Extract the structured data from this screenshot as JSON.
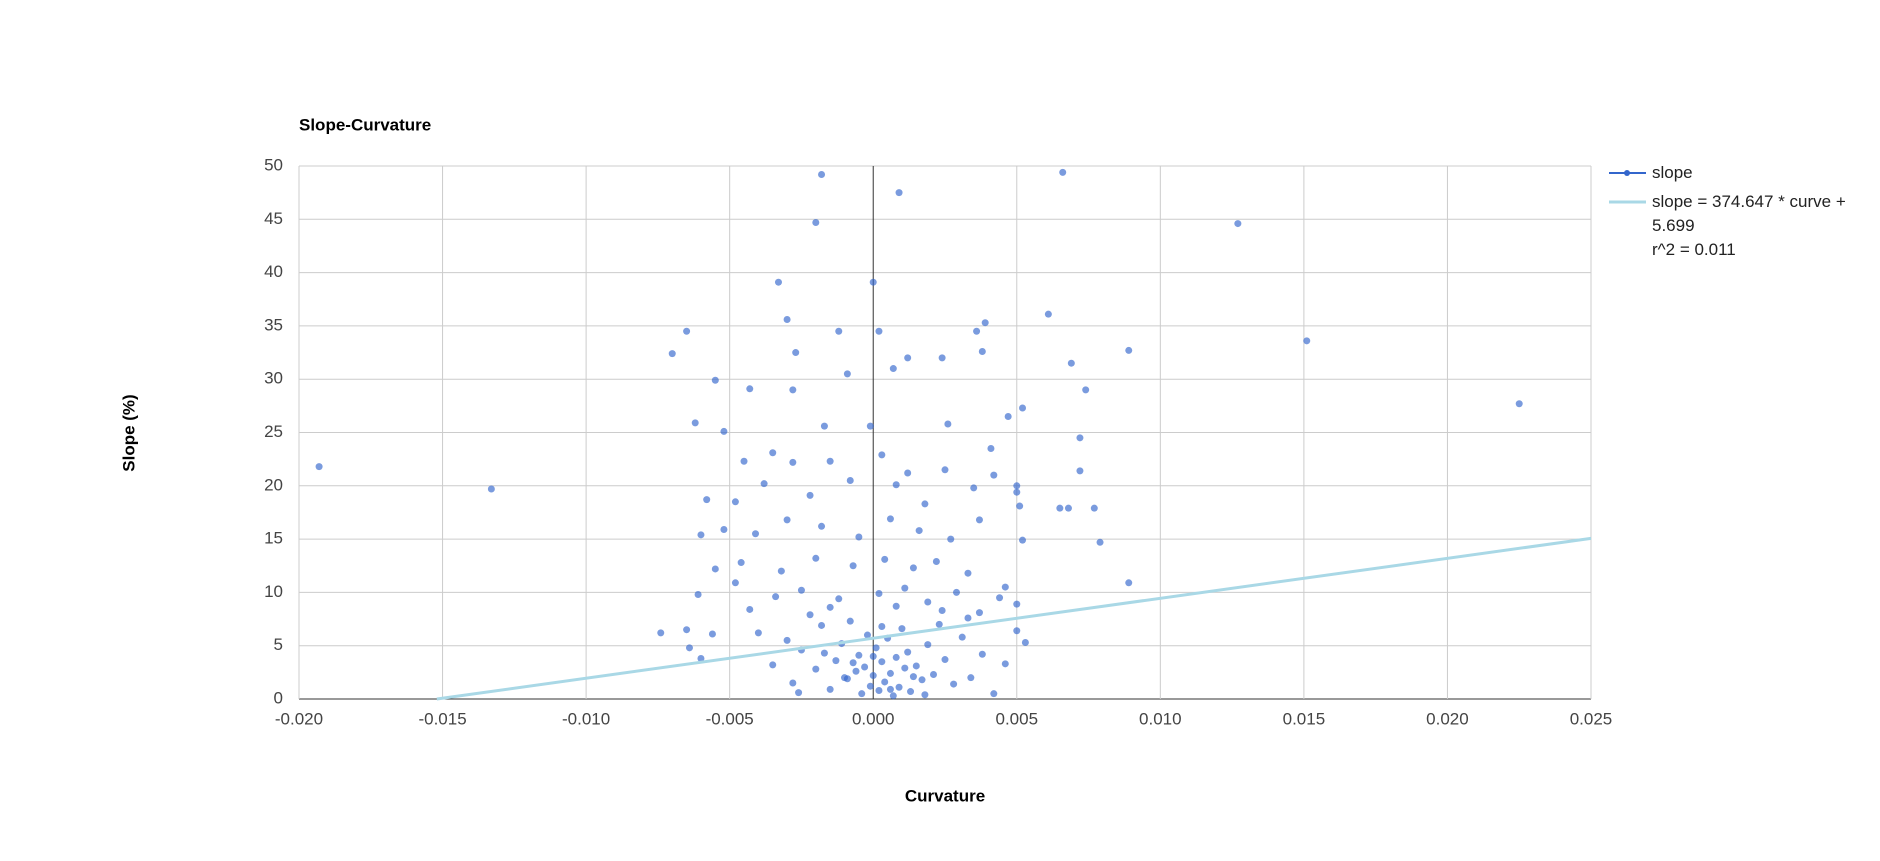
{
  "chart_data": {
    "type": "scatter",
    "title": "Slope-Curvature",
    "x_label": "Curvature",
    "y_label": "Slope (%)",
    "xlim": [
      -0.02,
      0.025
    ],
    "ylim": [
      0,
      50
    ],
    "xticks": [
      {
        "value": -0.02,
        "label": "-0.020"
      },
      {
        "value": -0.015,
        "label": "-0.015"
      },
      {
        "value": -0.01,
        "label": "-0.010"
      },
      {
        "value": -0.005,
        "label": "-0.005"
      },
      {
        "value": 0,
        "label": "0.000"
      },
      {
        "value": 0.005,
        "label": "0.005"
      },
      {
        "value": 0.01,
        "label": "0.010"
      },
      {
        "value": 0.015,
        "label": "0.015"
      },
      {
        "value": 0.02,
        "label": "0.020"
      },
      {
        "value": 0.025,
        "label": "0.025"
      }
    ],
    "yticks": [
      0,
      5,
      10,
      15,
      20,
      25,
      30,
      35,
      40,
      45,
      50
    ],
    "grid": true,
    "legend": "right",
    "series": [
      {
        "name": "slope",
        "color": "#3366cc",
        "x": [
          -0.0193,
          -0.0133,
          -0.0018,
          0.0009,
          -0.002,
          0.0066,
          0.0127,
          0.0151,
          0.0225,
          0,
          -0.0033,
          -0.003,
          -0.0065,
          -0.007,
          -0.0027,
          -0.0012,
          0.0002,
          0.0061,
          0.0039,
          0.0036,
          0.0089,
          0.0069,
          0.0074,
          0.0038,
          0.0024,
          0.0012,
          0.0007,
          -0.0055,
          -0.0043,
          -0.0028,
          -0.0009,
          -0.0062,
          -0.0052,
          -0.0017,
          -0.0001,
          0.0052,
          0.0026,
          0.0047,
          0.0072,
          0.0072,
          0.0065,
          0.0068,
          0.0077,
          0.0079,
          0.0089,
          0.0051,
          0.005,
          0.005,
          -0.006,
          -0.0074,
          -0.0045,
          -0.0035,
          -0.0028,
          -0.0015,
          0.0003,
          0.0012,
          0.0025,
          0.0042,
          0.0041,
          -0.0048,
          -0.0058,
          -0.0038,
          -0.0022,
          -0.0008,
          0.0008,
          0.0018,
          0.0035,
          -0.0052,
          -0.006,
          -0.0041,
          -0.003,
          -0.0018,
          -0.0005,
          0.0006,
          0.0016,
          0.0027,
          0.0037,
          0.0052,
          -0.0055,
          -0.0046,
          -0.0032,
          -0.002,
          -0.0007,
          0.0004,
          0.0014,
          0.0022,
          0.0033,
          0.0046,
          -0.0061,
          -0.0048,
          -0.0034,
          -0.0025,
          -0.0012,
          0.0002,
          0.0011,
          0.0019,
          0.0029,
          0.0044,
          0.005,
          -0.0043,
          -0.0015,
          0.0008,
          0.0024,
          0.0037,
          -0.0065,
          -0.0056,
          -0.0064,
          -0.004,
          -0.003,
          -0.0035,
          -0.0028,
          -0.0025,
          -0.002,
          -0.0018,
          -0.0015,
          -0.0013,
          -0.0011,
          -0.0009,
          -0.0008,
          -0.0006,
          -0.0005,
          -0.0004,
          -0.0003,
          -0.0002,
          -0.0001,
          0,
          0.0001,
          0.0002,
          0.0003,
          0.0004,
          0.0005,
          0.0006,
          0.0007,
          0.0008,
          0.0009,
          0.001,
          0.0011,
          0.0012,
          0.0013,
          0.0015,
          0.0017,
          0.0019,
          0.0021,
          0.0023,
          0.0025,
          0.0028,
          0.0031,
          0.0034,
          0.0038,
          0.0042,
          0.0046,
          0.005,
          0.0053,
          0.0033,
          -0.0022,
          -0.001,
          0,
          0.0006,
          -0.0007,
          0.0014,
          0.0003,
          -0.0017,
          0.0018,
          -0.0026
        ],
        "values": [
          21.8,
          19.7,
          49.2,
          47.5,
          44.7,
          49.4,
          44.6,
          33.6,
          27.7,
          39.1,
          39.1,
          35.6,
          34.5,
          32.4,
          32.5,
          34.5,
          34.5,
          36.1,
          35.3,
          34.5,
          32.7,
          31.5,
          29,
          32.6,
          32,
          32,
          31,
          29.9,
          29.1,
          29,
          30.5,
          25.9,
          25.1,
          25.6,
          25.6,
          27.3,
          25.8,
          26.5,
          24.5,
          21.4,
          17.9,
          17.9,
          17.9,
          14.7,
          10.9,
          18.1,
          20,
          19.4,
          3.8,
          6.2,
          22.3,
          23.1,
          22.2,
          22.3,
          22.9,
          21.2,
          21.5,
          21,
          23.5,
          18.5,
          18.7,
          20.2,
          19.1,
          20.5,
          20.1,
          18.3,
          19.8,
          15.9,
          15.4,
          15.5,
          16.8,
          16.2,
          15.2,
          16.9,
          15.8,
          15,
          16.8,
          14.9,
          12.2,
          12.8,
          12,
          13.2,
          12.5,
          13.1,
          12.3,
          12.9,
          11.8,
          10.5,
          9.8,
          10.9,
          9.6,
          10.2,
          9.4,
          9.9,
          10.4,
          9.1,
          10,
          9.5,
          8.9,
          8.4,
          8.6,
          8.7,
          8.3,
          8.1,
          6.5,
          6.1,
          4.8,
          6.2,
          5.5,
          3.2,
          1.5,
          4.6,
          2.8,
          6.9,
          0.9,
          3.6,
          5.2,
          1.9,
          7.3,
          2.6,
          4.1,
          0.5,
          3,
          6,
          1.2,
          2.2,
          4.8,
          0.8,
          3.5,
          1.6,
          5.7,
          2.4,
          0.3,
          3.9,
          1.1,
          6.6,
          2.9,
          4.4,
          0.7,
          3.1,
          1.8,
          5.1,
          2.3,
          7,
          3.7,
          1.4,
          5.8,
          2,
          4.2,
          0.5,
          3.3,
          6.4,
          5.3,
          7.6,
          7.9,
          2,
          4,
          0.9,
          3.4,
          2.1,
          6.8,
          4.3,
          0.4,
          0.6
        ]
      },
      {
        "name": "slope = 374.647 * curve + 5.699",
        "subtitle": "r^2 = 0.011",
        "color": "#a9d8e6",
        "trendline": true,
        "x": [
          -0.0152,
          0.025
        ],
        "values": [
          0,
          15.07
        ]
      }
    ]
  }
}
